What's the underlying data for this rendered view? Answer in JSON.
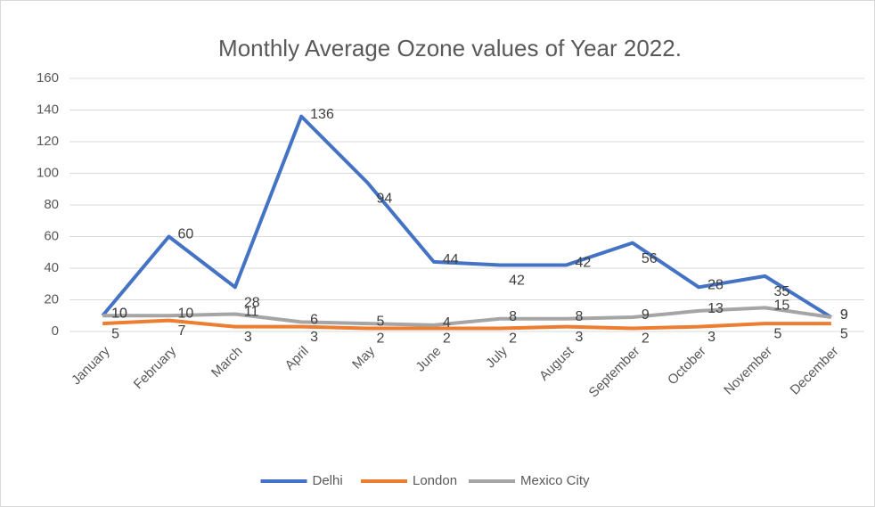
{
  "chart_data": {
    "type": "line",
    "title": "Monthly Average Ozone values of Year 2022.",
    "categories": [
      "January",
      "February",
      "March",
      "April",
      "May",
      "June",
      "July",
      "August",
      "September",
      "October",
      "November",
      "December"
    ],
    "series": [
      {
        "name": "Delhi",
        "color": "#4472c4",
        "values": [
          10,
          60,
          28,
          136,
          94,
          44,
          42,
          42,
          56,
          28,
          35,
          9
        ]
      },
      {
        "name": "London",
        "color": "#ed7d31",
        "values": [
          5,
          7,
          3,
          3,
          2,
          2,
          2,
          3,
          2,
          3,
          5,
          5
        ]
      },
      {
        "name": "Mexico City",
        "color": "#a5a5a5",
        "values": [
          10,
          10,
          11,
          6,
          5,
          4,
          8,
          8,
          9,
          13,
          15,
          9
        ]
      }
    ],
    "ylim": [
      0,
      160
    ],
    "yticks": [
      0,
      20,
      40,
      60,
      80,
      100,
      120,
      140,
      160
    ],
    "grid": true,
    "legend": "bottom"
  }
}
